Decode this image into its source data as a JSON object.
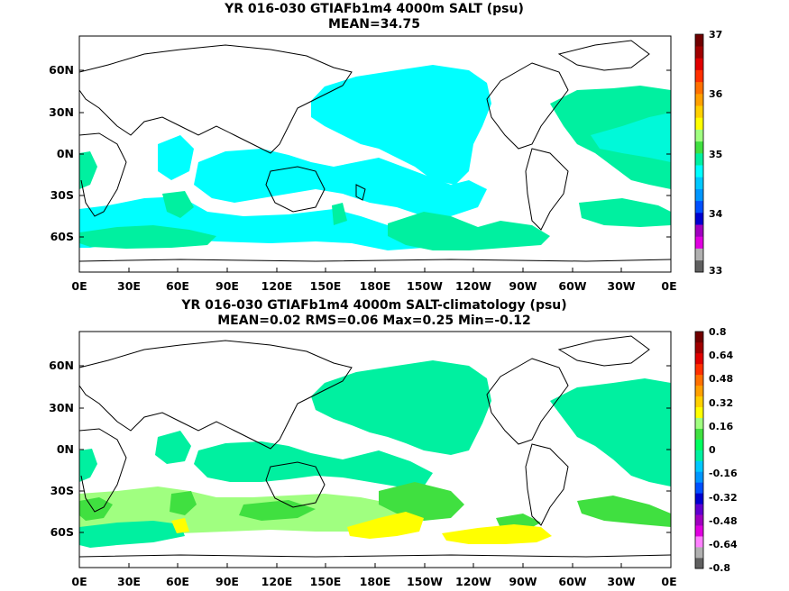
{
  "panels": [
    {
      "title": "YR 016-030 GTIAFb1m4 4000m SALT (psu)",
      "subtitle": "MEAN=34.75",
      "colorbar_labels": [
        "37",
        "36",
        "35",
        "34",
        "33"
      ],
      "colorbar_colors": [
        "#606060",
        "#b0b0b0",
        "#e000e0",
        "#a000c0",
        "#0000d0",
        "#0050ff",
        "#0096ff",
        "#00c8ff",
        "#00ffff",
        "#00f0a0",
        "#40e040",
        "#a0ff80",
        "#ffff00",
        "#ffd000",
        "#ffa000",
        "#ff7000",
        "#ff3000",
        "#e00000",
        "#a00000",
        "#700000"
      ]
    },
    {
      "title": "YR 016-030 GTIAFb1m4 4000m SALT-climatology (psu)",
      "subtitle": "MEAN=0.02   RMS=0.06   Max=0.25   Min=-0.12",
      "colorbar_labels": [
        "0.8",
        "0.64",
        "0.48",
        "0.32",
        "0.16",
        "0",
        "-0.16",
        "-0.32",
        "-0.48",
        "-0.64",
        "-0.8"
      ],
      "colorbar_colors": [
        "#606060",
        "#b0b0b0",
        "#ff80ff",
        "#e000e0",
        "#a000c0",
        "#6000d0",
        "#0000d0",
        "#0050ff",
        "#0096ff",
        "#00c8ff",
        "#00f0a0",
        "#00ff60",
        "#40e040",
        "#a0ff80",
        "#ffff00",
        "#ffd000",
        "#ffa000",
        "#ff7000",
        "#ff3000",
        "#e00000",
        "#a00000",
        "#700000"
      ]
    }
  ],
  "lat_labels": [
    "60N",
    "30N",
    "0N",
    "30S",
    "60S"
  ],
  "lon_labels": [
    "0E",
    "30E",
    "60E",
    "90E",
    "120E",
    "150E",
    "180E",
    "150W",
    "120W",
    "90W",
    "60W",
    "30W",
    "0E"
  ]
}
